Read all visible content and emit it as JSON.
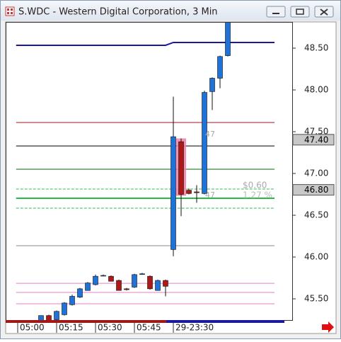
{
  "chart_data": {
    "type": "candlestick",
    "title": "S.WDC - Western Digital Corporation, 3 Min",
    "categories": [
      "05:00",
      null,
      null,
      null,
      null,
      "05:15",
      null,
      null,
      null,
      null,
      "05:30",
      null,
      null,
      null,
      null,
      "05:45",
      null,
      null,
      null,
      null,
      "29-23:30",
      null,
      null,
      null,
      null,
      null,
      null,
      null
    ],
    "open": [
      null,
      null,
      null,
      45.22,
      45.3,
      45.25,
      45.31,
      45.43,
      45.52,
      45.6,
      45.67,
      45.78,
      45.77,
      45.72,
      45.62,
      45.64,
      45.8,
      45.77,
      45.6,
      45.72,
      46.09,
      47.38,
      46.8,
      46.78,
      46.76,
      47.98,
      48.14,
      48.41
    ],
    "high": [
      null,
      null,
      null,
      45.3,
      45.31,
      45.36,
      45.46,
      45.55,
      45.63,
      45.7,
      45.79,
      45.79,
      45.78,
      45.73,
      45.63,
      45.8,
      45.81,
      45.78,
      45.73,
      45.73,
      47.92,
      47.42,
      46.82,
      46.86,
      47.99,
      48.15,
      48.41,
      48.9
    ],
    "low": [
      null,
      null,
      null,
      45.2,
      45.2,
      45.22,
      45.3,
      45.42,
      45.51,
      45.6,
      45.66,
      45.77,
      45.71,
      45.6,
      45.6,
      45.63,
      45.8,
      45.61,
      45.6,
      45.53,
      46.01,
      46.49,
      46.75,
      46.65,
      46.75,
      47.76,
      48.02,
      48.4
    ],
    "close": [
      null,
      null,
      null,
      45.3,
      45.24,
      45.35,
      45.45,
      45.53,
      45.62,
      45.69,
      45.77,
      45.78,
      45.71,
      45.6,
      45.61,
      45.79,
      45.8,
      45.62,
      45.72,
      45.65,
      47.44,
      46.75,
      46.76,
      46.77,
      47.97,
      48.14,
      48.4,
      48.85
    ],
    "up_color": "#1f72d8",
    "down_color": "#b01818",
    "highlight_index": 21,
    "highlight_color": "#f080a8",
    "ylim": [
      45.246,
      48.805
    ],
    "yticks": [
      {
        "value": 45.5,
        "label": "45.50"
      },
      {
        "value": 46,
        "label": "46.00"
      },
      {
        "value": 46.5,
        "label": "46.50"
      },
      {
        "value": 47,
        "label": "47.00"
      },
      {
        "value": 47.5,
        "label": "47.50"
      },
      {
        "value": 48,
        "label": "48.00"
      },
      {
        "value": 48.5,
        "label": "48.50"
      }
    ],
    "price_markers": [
      {
        "value": 47.4,
        "label": "47.40"
      },
      {
        "value": 46.8,
        "label": "46.80"
      }
    ],
    "lines": [
      {
        "color": "#1a1aa0",
        "width": 2,
        "dashed": false,
        "x": [
          -0.2,
          19,
          20,
          33
        ],
        "values": [
          48.534,
          48.534,
          48.568,
          48.568
        ]
      },
      {
        "color": "#a01818",
        "width": 1,
        "dashed": false,
        "x": [
          -0.2,
          33
        ],
        "values": [
          47.61,
          47.61
        ]
      },
      {
        "color": "#000000",
        "width": 1,
        "dashed": false,
        "x": [
          -0.2,
          33
        ],
        "values": [
          47.33,
          47.33
        ]
      },
      {
        "color": "#0a6a0a",
        "width": 1,
        "dashed": false,
        "x": [
          -0.2,
          33
        ],
        "values": [
          47.051,
          47.051
        ]
      },
      {
        "color": "#33bb55",
        "width": 1,
        "dashed": true,
        "x": [
          -0.2,
          33
        ],
        "values": [
          46.814,
          46.814
        ]
      },
      {
        "color": "#22bb44",
        "width": 2,
        "dashed": false,
        "x": [
          -0.2,
          33
        ],
        "values": [
          46.703,
          46.703
        ]
      },
      {
        "color": "#33bb55",
        "width": 1,
        "dashed": true,
        "x": [
          -0.2,
          33
        ],
        "values": [
          46.585,
          46.585
        ]
      },
      {
        "color": "#888888",
        "width": 1,
        "dashed": false,
        "x": [
          -0.2,
          33
        ],
        "values": [
          46.136,
          46.136
        ]
      },
      {
        "color": "#e080c8",
        "width": 1,
        "dashed": false,
        "x": [
          -0.2,
          33
        ],
        "values": [
          45.686,
          45.686
        ]
      },
      {
        "color": "#e080c8",
        "width": 1,
        "dashed": false,
        "x": [
          -0.2,
          33
        ],
        "values": [
          45.576,
          45.576
        ]
      },
      {
        "color": "#e080c8",
        "width": 1,
        "dashed": false,
        "x": [
          -0.2,
          33
        ],
        "values": [
          45.441,
          45.441
        ]
      }
    ],
    "annotations": [
      "47",
      "47",
      "$0.60",
      "1.27 %"
    ]
  }
}
